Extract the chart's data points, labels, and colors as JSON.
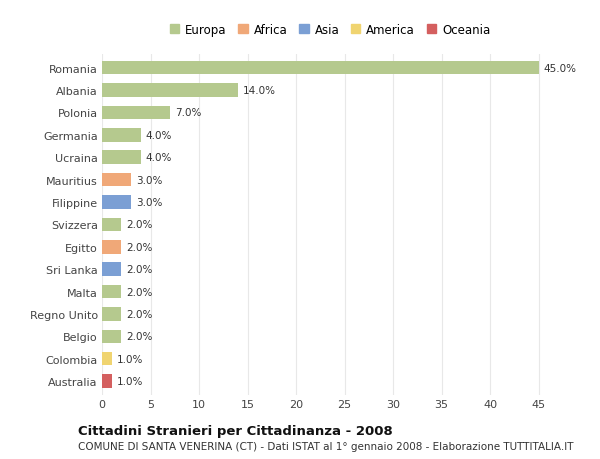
{
  "countries": [
    "Romania",
    "Albania",
    "Polonia",
    "Germania",
    "Ucraina",
    "Mauritius",
    "Filippine",
    "Svizzera",
    "Egitto",
    "Sri Lanka",
    "Malta",
    "Regno Unito",
    "Belgio",
    "Colombia",
    "Australia"
  ],
  "values": [
    45.0,
    14.0,
    7.0,
    4.0,
    4.0,
    3.0,
    3.0,
    2.0,
    2.0,
    2.0,
    2.0,
    2.0,
    2.0,
    1.0,
    1.0
  ],
  "continents": [
    "Europa",
    "Europa",
    "Europa",
    "Europa",
    "Europa",
    "Africa",
    "Asia",
    "Europa",
    "Africa",
    "Asia",
    "Europa",
    "Europa",
    "Europa",
    "America",
    "Oceania"
  ],
  "continent_colors": {
    "Europa": "#b5c98e",
    "Africa": "#f0a878",
    "Asia": "#7b9fd4",
    "America": "#f0d470",
    "Oceania": "#d45f5f"
  },
  "legend_order": [
    "Europa",
    "Africa",
    "Asia",
    "America",
    "Oceania"
  ],
  "title": "Cittadini Stranieri per Cittadinanza - 2008",
  "subtitle": "COMUNE DI SANTA VENERINA (CT) - Dati ISTAT al 1° gennaio 2008 - Elaborazione TUTTITALIA.IT",
  "xlim": [
    0,
    47
  ],
  "xticks": [
    0,
    5,
    10,
    15,
    20,
    25,
    30,
    35,
    40,
    45
  ],
  "plot_bg": "#ffffff",
  "fig_bg": "#ffffff",
  "grid_color": "#e8e8e8",
  "bar_height": 0.6,
  "value_label_fontsize": 7.5,
  "ytick_fontsize": 8.0,
  "xtick_fontsize": 8.0,
  "legend_fontsize": 8.5,
  "title_fontsize": 9.5,
  "subtitle_fontsize": 7.5
}
